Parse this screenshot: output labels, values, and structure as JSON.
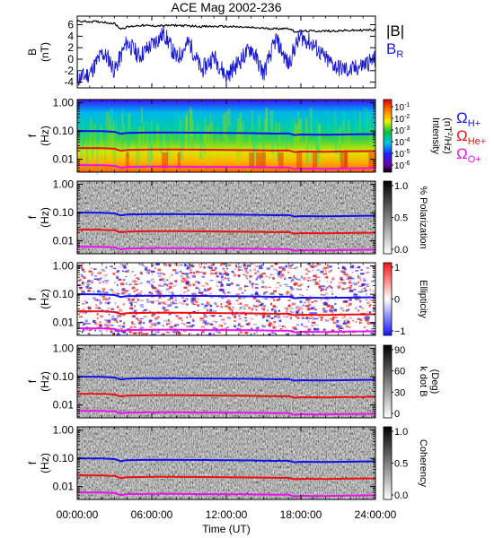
{
  "title": "ACE Mag 2002-236",
  "colors": {
    "h_plus": "#1010ee",
    "he_plus": "#ee1010",
    "o_plus": "#ee10ee",
    "b_total": "#000000",
    "b_r": "#1a1acc"
  },
  "chart_data": [
    {
      "type": "line",
      "panel": "B",
      "ylabel_top": "B",
      "ylabel_bottom": "(nT)",
      "ylim": [
        -5,
        7.5
      ],
      "yticks": [
        "6",
        "4",
        "2",
        "0",
        "-2",
        "-4"
      ],
      "ytick_values": [
        6,
        4,
        2,
        0,
        -2,
        -4
      ],
      "series": [
        {
          "name": "|B|",
          "x": [
            0,
            2,
            3,
            3.5,
            4,
            5,
            6,
            8,
            10,
            12,
            14,
            16,
            17,
            17.5,
            18,
            20,
            22,
            24
          ],
          "values": [
            6.6,
            6.5,
            6.2,
            5.3,
            5.6,
            5.9,
            5.8,
            5.9,
            5.7,
            5.7,
            5.5,
            5.3,
            5.4,
            4.8,
            4.9,
            4.9,
            5.0,
            5.1
          ]
        },
        {
          "name": "B_R",
          "legend_main": "B",
          "legend_sub": "R",
          "x": [
            0,
            1,
            2,
            2.5,
            3,
            4,
            5,
            6,
            7,
            8,
            9,
            10,
            11,
            12,
            13,
            14,
            15,
            16,
            17,
            17.5,
            18,
            19,
            20,
            21,
            22,
            23,
            24
          ],
          "values": [
            -3.5,
            -2.5,
            1.0,
            0.2,
            -2.0,
            3.0,
            0.5,
            2.5,
            4.5,
            0.0,
            3.0,
            -2.0,
            0.5,
            -3.0,
            -0.5,
            2.0,
            -2.5,
            3.5,
            -1.0,
            2.0,
            4.0,
            2.5,
            0.0,
            -1.5,
            -2.0,
            -1.0,
            0.0
          ]
        }
      ]
    },
    {
      "type": "heatmap",
      "panel": "Intensity",
      "ylabel_top": "f",
      "ylabel_bottom": "(Hz)",
      "yticks": [
        "1.00",
        "0.10",
        "0.01"
      ],
      "colorbar_label": "Intensity (nT²/Hz)",
      "colorbar_label_main": "Intensity",
      "colorbar_label_unit_left": "(nT",
      "colorbar_label_unit_sup": "2",
      "colorbar_label_unit_right": "/Hz)",
      "colorbar_ticks": [
        {
          "base": "10",
          "exp": "-1"
        },
        {
          "base": "10",
          "exp": "-2"
        },
        {
          "base": "10",
          "exp": "-3"
        },
        {
          "base": "10",
          "exp": "-4"
        },
        {
          "base": "10",
          "exp": "-5"
        },
        {
          "base": "10",
          "exp": "-6"
        }
      ],
      "legend": [
        {
          "main": "Ω",
          "sub": "H+",
          "color": "#1010ee"
        },
        {
          "main": "Ω",
          "sub": "He+",
          "color": "#ee1010"
        },
        {
          "main": "Ω",
          "sub": "O+",
          "color": "#ee10ee"
        }
      ]
    },
    {
      "type": "heatmap",
      "panel": "Polarization",
      "ylabel_top": "f",
      "ylabel_bottom": "(Hz)",
      "yticks": [
        "1.00",
        "0.10",
        "0.01"
      ],
      "colorbar_label": "% Polarization",
      "colorbar_ticks": [
        "1.0",
        "0.5",
        "0.0"
      ]
    },
    {
      "type": "heatmap",
      "panel": "Ellipticity",
      "ylabel_top": "f",
      "ylabel_bottom": "(Hz)",
      "yticks": [
        "1.00",
        "0.10",
        "0.01"
      ],
      "colorbar_label": "Ellipticity",
      "colorbar_ticks": [
        "1",
        "0",
        "−1"
      ]
    },
    {
      "type": "heatmap",
      "panel": "k dot B",
      "ylabel_top": "f",
      "ylabel_bottom": "(Hz)",
      "yticks": [
        "1.00",
        "0.10",
        "0.01"
      ],
      "colorbar_label": "k dot B",
      "colorbar_label_unit": "(Deg)",
      "colorbar_ticks": [
        "90",
        "60",
        "30",
        "0"
      ]
    },
    {
      "type": "heatmap",
      "panel": "Coherency",
      "ylabel_top": "f",
      "ylabel_bottom": "(Hz)",
      "yticks": [
        "1.00",
        "0.10",
        "0.01"
      ],
      "colorbar_label": "Coherency",
      "colorbar_ticks": [
        "1.0",
        "0.5",
        "0.0"
      ]
    }
  ],
  "gyro_lines": {
    "x": [
      0,
      2,
      3,
      3.5,
      4,
      6,
      8,
      10,
      12,
      14,
      16,
      17,
      17.5,
      18,
      20,
      22,
      24
    ],
    "h_plus": [
      0.1,
      0.099,
      0.094,
      0.08,
      0.086,
      0.089,
      0.088,
      0.087,
      0.086,
      0.084,
      0.081,
      0.082,
      0.072,
      0.075,
      0.074,
      0.076,
      0.078
    ],
    "he_plus": [
      0.025,
      0.0247,
      0.0235,
      0.02,
      0.0215,
      0.0222,
      0.022,
      0.0218,
      0.0215,
      0.021,
      0.0203,
      0.0205,
      0.018,
      0.0188,
      0.0185,
      0.019,
      0.0195
    ],
    "o_plus": [
      0.00625,
      0.0062,
      0.0059,
      0.005,
      0.0054,
      0.0055,
      0.0055,
      0.0054,
      0.0054,
      0.0053,
      0.0051,
      0.0051,
      0.0045,
      0.0047,
      0.0046,
      0.0048,
      0.0049
    ]
  },
  "x_axis": {
    "label": "Time (UT)",
    "ticks": [
      "00:00:00",
      "06:00:00",
      "12:00:00",
      "18:00:00",
      "24:00:00"
    ],
    "tick_hours": [
      0,
      6,
      12,
      18,
      24
    ]
  }
}
